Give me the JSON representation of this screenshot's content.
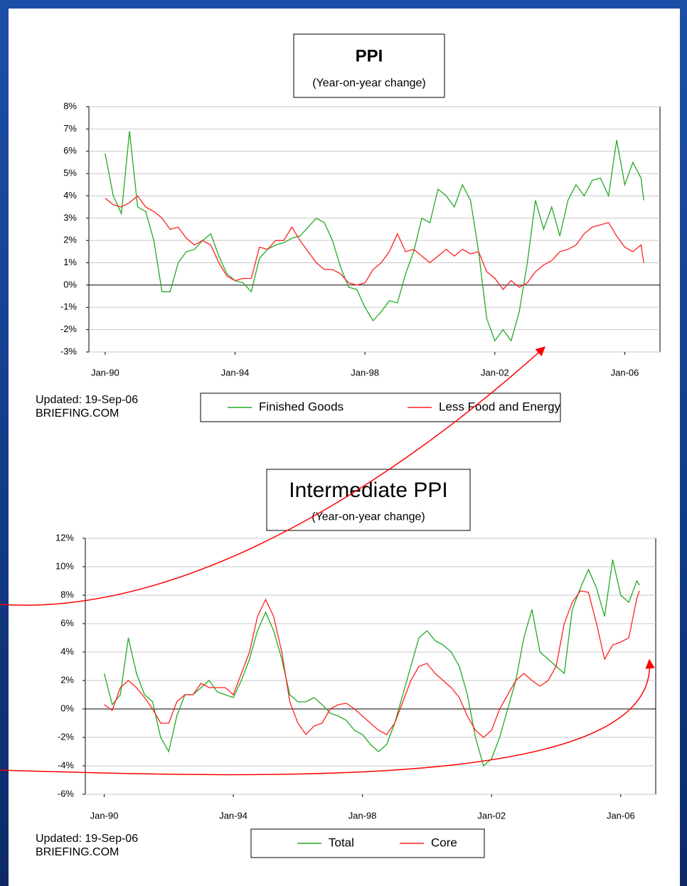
{
  "chart_data": [
    {
      "type": "line",
      "title": "PPI",
      "subtitle": "(Year-on-year change)",
      "annotations": [
        "Updated:  19-Sep-06",
        "BRIEFING.COM"
      ],
      "x": [
        "1990-01",
        "1990-04",
        "1990-07",
        "1990-10",
        "1991-01",
        "1991-04",
        "1991-07",
        "1991-10",
        "1992-01",
        "1992-04",
        "1992-07",
        "1992-10",
        "1993-01",
        "1993-04",
        "1993-07",
        "1993-10",
        "1994-01",
        "1994-04",
        "1994-07",
        "1994-10",
        "1995-01",
        "1995-04",
        "1995-07",
        "1995-10",
        "1996-01",
        "1996-04",
        "1996-07",
        "1996-10",
        "1997-01",
        "1997-04",
        "1997-07",
        "1997-10",
        "1998-01",
        "1998-04",
        "1998-07",
        "1998-10",
        "1999-01",
        "1999-04",
        "1999-07",
        "1999-10",
        "2000-01",
        "2000-04",
        "2000-07",
        "2000-10",
        "2001-01",
        "2001-04",
        "2001-07",
        "2001-10",
        "2002-01",
        "2002-04",
        "2002-07",
        "2002-10",
        "2003-01",
        "2003-04",
        "2003-07",
        "2003-10",
        "2004-01",
        "2004-04",
        "2004-07",
        "2004-10",
        "2005-01",
        "2005-04",
        "2005-07",
        "2005-10",
        "2006-01",
        "2006-04",
        "2006-07",
        "2006-08"
      ],
      "series": [
        {
          "name": "Finished Goods",
          "color": "#22aa22",
          "values": [
            5.9,
            4.0,
            3.2,
            6.9,
            3.5,
            3.3,
            2.0,
            -0.3,
            -0.3,
            1.0,
            1.5,
            1.6,
            2.0,
            2.3,
            1.3,
            0.5,
            0.2,
            0.1,
            -0.3,
            1.2,
            1.6,
            1.8,
            1.9,
            2.1,
            2.2,
            2.6,
            3.0,
            2.8,
            2.0,
            0.8,
            -0.1,
            -0.2,
            -1.0,
            -1.6,
            -1.2,
            -0.7,
            -0.8,
            0.5,
            1.5,
            3.0,
            2.8,
            4.3,
            4.0,
            3.5,
            4.5,
            3.8,
            1.5,
            -1.5,
            -2.5,
            -2.0,
            -2.5,
            -1.2,
            1.0,
            3.8,
            2.5,
            3.5,
            2.2,
            3.8,
            4.5,
            4.0,
            4.7,
            4.8,
            4.0,
            6.5,
            4.5,
            5.5,
            4.8,
            3.8
          ]
        },
        {
          "name": "Less Food and Energy",
          "color": "#ff2020",
          "values": [
            3.9,
            3.6,
            3.5,
            3.7,
            4.0,
            3.5,
            3.3,
            3.0,
            2.5,
            2.6,
            2.1,
            1.8,
            2.0,
            1.8,
            1.0,
            0.4,
            0.2,
            0.3,
            0.3,
            1.7,
            1.6,
            2.0,
            2.0,
            2.6,
            2.0,
            1.5,
            1.0,
            0.7,
            0.7,
            0.5,
            0.1,
            0.0,
            0.1,
            0.7,
            1.0,
            1.5,
            2.3,
            1.5,
            1.6,
            1.3,
            1.0,
            1.3,
            1.6,
            1.3,
            1.6,
            1.4,
            1.5,
            0.6,
            0.3,
            -0.2,
            0.2,
            -0.1,
            0.1,
            0.6,
            0.9,
            1.1,
            1.5,
            1.6,
            1.8,
            2.3,
            2.6,
            2.7,
            2.8,
            2.2,
            1.7,
            1.5,
            1.8,
            1.0
          ]
        }
      ],
      "xlim": [
        "1989-07",
        "2007-02"
      ],
      "xticks": [
        {
          "value": "1990-01",
          "label": "Jan-90"
        },
        {
          "value": "1994-01",
          "label": "Jan-94"
        },
        {
          "value": "1998-01",
          "label": "Jan-98"
        },
        {
          "value": "2002-01",
          "label": "Jan-02"
        },
        {
          "value": "2006-01",
          "label": "Jan-06"
        }
      ],
      "ylim": [
        -3,
        8
      ],
      "yticks": [
        {
          "value": -3,
          "label": "-3%"
        },
        {
          "value": -2,
          "label": "-2%"
        },
        {
          "value": -1,
          "label": "-1%"
        },
        {
          "value": 0,
          "label": "0%"
        },
        {
          "value": 1,
          "label": "1%"
        },
        {
          "value": 2,
          "label": "2%"
        },
        {
          "value": 3,
          "label": "3%"
        },
        {
          "value": 4,
          "label": "4%"
        },
        {
          "value": 5,
          "label": "5%"
        },
        {
          "value": 6,
          "label": "6%"
        },
        {
          "value": 7,
          "label": "7%"
        },
        {
          "value": 8,
          "label": "8%"
        }
      ],
      "grid": true,
      "legend": "bottom"
    },
    {
      "type": "line",
      "title": "Intermediate PPI",
      "subtitle": "(Year-on-year change)",
      "annotations": [
        "Updated: 19-Sep-06",
        "BRIEFING.COM"
      ],
      "x": [
        "1990-01",
        "1990-04",
        "1990-07",
        "1990-10",
        "1991-01",
        "1991-04",
        "1991-07",
        "1991-10",
        "1992-01",
        "1992-04",
        "1992-07",
        "1992-10",
        "1993-01",
        "1993-04",
        "1993-07",
        "1993-10",
        "1994-01",
        "1994-04",
        "1994-07",
        "1994-10",
        "1995-01",
        "1995-04",
        "1995-07",
        "1995-10",
        "1996-01",
        "1996-04",
        "1996-07",
        "1996-10",
        "1997-01",
        "1997-04",
        "1997-07",
        "1997-10",
        "1998-01",
        "1998-04",
        "1998-07",
        "1998-10",
        "1999-01",
        "1999-04",
        "1999-07",
        "1999-10",
        "2000-01",
        "2000-04",
        "2000-07",
        "2000-10",
        "2001-01",
        "2001-04",
        "2001-07",
        "2001-10",
        "2002-01",
        "2002-04",
        "2002-07",
        "2002-10",
        "2003-01",
        "2003-04",
        "2003-07",
        "2003-10",
        "2004-01",
        "2004-04",
        "2004-07",
        "2004-10",
        "2005-01",
        "2005-04",
        "2005-07",
        "2005-10",
        "2006-01",
        "2006-04",
        "2006-07",
        "2006-08"
      ],
      "series": [
        {
          "name": "Total",
          "color": "#22aa22",
          "values": [
            2.5,
            0.3,
            1.0,
            5.0,
            2.5,
            1.0,
            0.5,
            -2.0,
            -3.0,
            -0.5,
            1.0,
            1.0,
            1.5,
            2.0,
            1.2,
            1.0,
            0.8,
            2.0,
            3.5,
            5.5,
            6.8,
            5.5,
            3.5,
            1.0,
            0.5,
            0.5,
            0.8,
            0.3,
            -0.3,
            -0.5,
            -0.8,
            -1.5,
            -1.8,
            -2.5,
            -3.0,
            -2.5,
            -1.0,
            1.0,
            3.0,
            5.0,
            5.5,
            4.8,
            4.5,
            4.0,
            3.0,
            1.0,
            -2.0,
            -4.0,
            -3.5,
            -2.0,
            0.0,
            2.0,
            5.0,
            7.0,
            4.0,
            3.5,
            3.0,
            2.5,
            7.0,
            8.5,
            9.8,
            8.5,
            6.5,
            10.5,
            8.0,
            7.5,
            9.0,
            8.7
          ]
        },
        {
          "name": "Core",
          "color": "#ff2020",
          "values": [
            0.3,
            -0.1,
            1.5,
            2.0,
            1.5,
            0.8,
            0.0,
            -1.0,
            -1.0,
            0.5,
            1.0,
            1.0,
            1.8,
            1.5,
            1.5,
            1.5,
            1.0,
            2.5,
            4.0,
            6.5,
            7.7,
            6.5,
            4.0,
            0.5,
            -1.0,
            -1.8,
            -1.2,
            -1.0,
            0.0,
            0.3,
            0.4,
            0.0,
            -0.5,
            -1.0,
            -1.5,
            -1.8,
            -1.0,
            0.5,
            2.0,
            3.0,
            3.2,
            2.5,
            2.0,
            1.5,
            0.8,
            -0.5,
            -1.5,
            -2.0,
            -1.5,
            0.0,
            1.0,
            2.0,
            2.5,
            2.0,
            1.6,
            2.0,
            3.0,
            6.0,
            7.5,
            8.3,
            8.2,
            6.0,
            3.5,
            4.5,
            4.7,
            5.0,
            7.8,
            8.3
          ]
        }
      ],
      "xlim": [
        "1989-06",
        "2007-02"
      ],
      "xticks": [
        {
          "value": "1990-01",
          "label": "Jan-90"
        },
        {
          "value": "1994-01",
          "label": "Jan-94"
        },
        {
          "value": "1998-01",
          "label": "Jan-98"
        },
        {
          "value": "2002-01",
          "label": "Jan-02"
        },
        {
          "value": "2006-01",
          "label": "Jan-06"
        }
      ],
      "ylim": [
        -6,
        12
      ],
      "yticks": [
        {
          "value": -6,
          "label": "-6%"
        },
        {
          "value": -4,
          "label": "-4%"
        },
        {
          "value": -2,
          "label": "-2%"
        },
        {
          "value": 0,
          "label": "0%"
        },
        {
          "value": 2,
          "label": "2%"
        },
        {
          "value": 4,
          "label": "4%"
        },
        {
          "value": 6,
          "label": "6%"
        },
        {
          "value": 8,
          "label": "8%"
        },
        {
          "value": 10,
          "label": "10%"
        },
        {
          "value": 12,
          "label": "12%"
        }
      ],
      "grid": true,
      "legend": "bottom"
    }
  ]
}
